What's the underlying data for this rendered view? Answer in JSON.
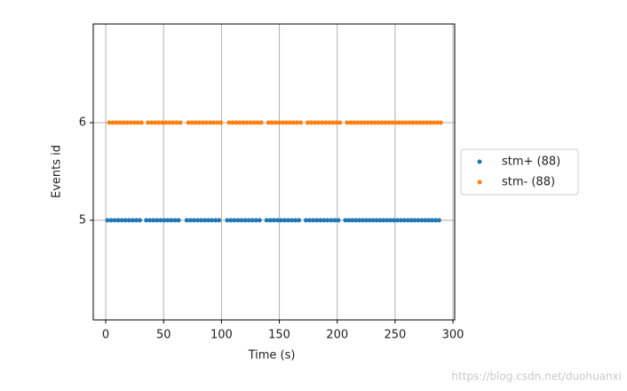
{
  "chart_data": {
    "type": "scatter",
    "xlabel": "Time (s)",
    "ylabel": "Events id",
    "xlim": [
      -10.8,
      301.5
    ],
    "ylim": [
      3.98,
      7.01
    ],
    "xticks": [
      0,
      50,
      100,
      150,
      200,
      250,
      300
    ],
    "yticks": [
      5,
      6
    ],
    "grid": true,
    "legend": "outside right",
    "watermark": "https://blog.csdn.net/duohuanxi",
    "series": [
      {
        "name": "stm+ (88)",
        "color": "#1f77b4",
        "x": [
          1.5,
          4.6,
          7.7,
          10.8,
          13.9,
          17.0,
          20.1,
          23.2,
          26.3,
          29.4,
          35.0,
          38.1,
          41.2,
          44.3,
          47.4,
          50.5,
          53.6,
          56.7,
          59.8,
          62.9,
          70.0,
          73.1,
          76.2,
          79.3,
          82.4,
          85.5,
          88.6,
          91.7,
          94.8,
          97.9,
          105.0,
          108.1,
          111.2,
          114.3,
          117.4,
          120.5,
          123.6,
          126.7,
          129.8,
          132.9,
          139.0,
          142.1,
          145.2,
          148.3,
          151.4,
          154.5,
          157.6,
          160.7,
          163.8,
          166.9,
          173.0,
          176.1,
          179.2,
          182.3,
          185.4,
          188.5,
          191.6,
          194.7,
          197.8,
          200.9,
          207,
          210,
          213,
          216,
          219,
          222,
          225,
          228,
          231,
          234,
          237,
          240,
          243,
          246,
          249,
          252,
          255,
          258,
          261,
          264,
          267,
          270,
          273,
          276,
          279,
          282,
          285,
          288
        ],
        "values": [
          5,
          5,
          5,
          5,
          5,
          5,
          5,
          5,
          5,
          5,
          5,
          5,
          5,
          5,
          5,
          5,
          5,
          5,
          5,
          5,
          5,
          5,
          5,
          5,
          5,
          5,
          5,
          5,
          5,
          5,
          5,
          5,
          5,
          5,
          5,
          5,
          5,
          5,
          5,
          5,
          5,
          5,
          5,
          5,
          5,
          5,
          5,
          5,
          5,
          5,
          5,
          5,
          5,
          5,
          5,
          5,
          5,
          5,
          5,
          5,
          5,
          5,
          5,
          5,
          5,
          5,
          5,
          5,
          5,
          5,
          5,
          5,
          5,
          5,
          5,
          5,
          5,
          5,
          5,
          5,
          5,
          5,
          5,
          5,
          5,
          5,
          5,
          5
        ]
      },
      {
        "name": "stm- (88)",
        "color": "#ff7f0e",
        "x": [
          3.0,
          6.1,
          9.2,
          12.3,
          15.4,
          18.5,
          21.6,
          24.7,
          27.8,
          30.9,
          36.5,
          39.6,
          42.7,
          45.8,
          48.9,
          52.0,
          55.1,
          58.2,
          61.3,
          64.4,
          71.5,
          74.6,
          77.7,
          80.8,
          83.9,
          87.0,
          90.1,
          93.2,
          96.3,
          99.4,
          106.5,
          109.6,
          112.7,
          115.8,
          118.9,
          122.0,
          125.1,
          128.2,
          131.3,
          134.4,
          140.5,
          143.6,
          146.7,
          149.8,
          152.9,
          156.0,
          159.1,
          162.2,
          165.3,
          168.4,
          174.5,
          177.6,
          180.7,
          183.8,
          186.9,
          190.0,
          193.1,
          196.2,
          199.3,
          202.4,
          208.5,
          211.5,
          214.5,
          217.5,
          220.5,
          223.5,
          226.5,
          229.5,
          232.5,
          235.5,
          238.5,
          241.5,
          244.5,
          247.5,
          250.5,
          253.5,
          256.5,
          259.5,
          262.5,
          265.5,
          268.5,
          271.5,
          274.5,
          277.5,
          280.5,
          283.5,
          286.5,
          289.5
        ],
        "values": [
          6,
          6,
          6,
          6,
          6,
          6,
          6,
          6,
          6,
          6,
          6,
          6,
          6,
          6,
          6,
          6,
          6,
          6,
          6,
          6,
          6,
          6,
          6,
          6,
          6,
          6,
          6,
          6,
          6,
          6,
          6,
          6,
          6,
          6,
          6,
          6,
          6,
          6,
          6,
          6,
          6,
          6,
          6,
          6,
          6,
          6,
          6,
          6,
          6,
          6,
          6,
          6,
          6,
          6,
          6,
          6,
          6,
          6,
          6,
          6,
          6,
          6,
          6,
          6,
          6,
          6,
          6,
          6,
          6,
          6,
          6,
          6,
          6,
          6,
          6,
          6,
          6,
          6,
          6,
          6,
          6,
          6,
          6,
          6,
          6,
          6,
          6,
          6
        ]
      }
    ]
  }
}
